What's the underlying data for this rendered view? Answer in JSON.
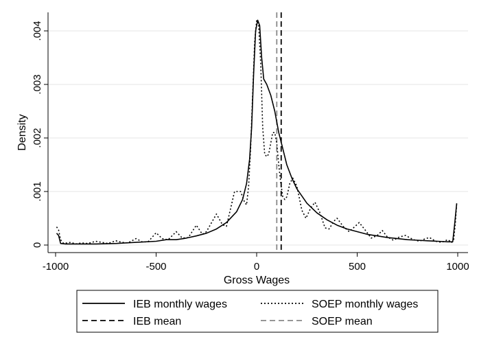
{
  "chart_data": {
    "type": "line",
    "title": "",
    "xlabel": "Gross Wages",
    "ylabel": "Density",
    "xlim": [
      -1000,
      1000
    ],
    "ylim": [
      0,
      0.0043
    ],
    "grid": true,
    "legend_position": "bottom",
    "x_ticks": [
      {
        "value": -1000,
        "label": "-1000"
      },
      {
        "value": -500,
        "label": "-500"
      },
      {
        "value": 0,
        "label": "0"
      },
      {
        "value": 500,
        "label": "500"
      },
      {
        "value": 1000,
        "label": "1000"
      }
    ],
    "y_ticks": [
      {
        "value": 0,
        "label": "0"
      },
      {
        "value": 0.001,
        "label": ".001"
      },
      {
        "value": 0.002,
        "label": ".002"
      },
      {
        "value": 0.003,
        "label": ".003"
      },
      {
        "value": 0.004,
        "label": ".004"
      }
    ],
    "series": [
      {
        "name": "IEB monthly wages",
        "style": "solid",
        "color": "#000000",
        "points": [
          [
            -995,
            0.00022
          ],
          [
            -985,
            0.00018
          ],
          [
            -975,
            3e-05
          ],
          [
            -950,
            2e-05
          ],
          [
            -900,
            2e-05
          ],
          [
            -800,
            2e-05
          ],
          [
            -700,
            3e-05
          ],
          [
            -600,
            5e-05
          ],
          [
            -500,
            7e-05
          ],
          [
            -450,
            0.0001
          ],
          [
            -400,
            0.0001
          ],
          [
            -350,
            0.00013
          ],
          [
            -300,
            0.00017
          ],
          [
            -250,
            0.00022
          ],
          [
            -200,
            0.0003
          ],
          [
            -150,
            0.00042
          ],
          [
            -100,
            0.00062
          ],
          [
            -70,
            0.00085
          ],
          [
            -50,
            0.00115
          ],
          [
            -35,
            0.0016
          ],
          [
            -25,
            0.0022
          ],
          [
            -15,
            0.0032
          ],
          [
            -5,
            0.004
          ],
          [
            5,
            0.0042
          ],
          [
            15,
            0.0041
          ],
          [
            25,
            0.0035
          ],
          [
            35,
            0.0031
          ],
          [
            50,
            0.003
          ],
          [
            70,
            0.0028
          ],
          [
            90,
            0.0025
          ],
          [
            110,
            0.0021
          ],
          [
            130,
            0.0018
          ],
          [
            150,
            0.0015
          ],
          [
            175,
            0.00125
          ],
          [
            200,
            0.00105
          ],
          [
            250,
            0.00078
          ],
          [
            300,
            0.0006
          ],
          [
            350,
            0.00047
          ],
          [
            400,
            0.00037
          ],
          [
            450,
            0.0003
          ],
          [
            500,
            0.00025
          ],
          [
            550,
            0.0002
          ],
          [
            600,
            0.00017
          ],
          [
            650,
            0.00014
          ],
          [
            700,
            0.00012
          ],
          [
            750,
            0.0001
          ],
          [
            800,
            9e-05
          ],
          [
            850,
            8e-05
          ],
          [
            900,
            7e-05
          ],
          [
            950,
            6e-05
          ],
          [
            975,
            6e-05
          ],
          [
            985,
            0.0004
          ],
          [
            995,
            0.00078
          ]
        ]
      },
      {
        "name": "SOEP monthly wages",
        "style": "dotted",
        "color": "#000000",
        "points": [
          [
            -995,
            0.00034
          ],
          [
            -985,
            0.00028
          ],
          [
            -975,
            0.0001
          ],
          [
            -960,
            3e-05
          ],
          [
            -925,
            5e-05
          ],
          [
            -900,
            2e-05
          ],
          [
            -870,
            4e-05
          ],
          [
            -840,
            3e-05
          ],
          [
            -800,
            7e-05
          ],
          [
            -770,
            5e-05
          ],
          [
            -740,
            3e-05
          ],
          [
            -700,
            8e-05
          ],
          [
            -670,
            5e-05
          ],
          [
            -640,
            4e-05
          ],
          [
            -600,
            0.00012
          ],
          [
            -570,
            6e-05
          ],
          [
            -540,
            6e-05
          ],
          [
            -500,
            0.00023
          ],
          [
            -470,
            0.00012
          ],
          [
            -440,
            0.0001
          ],
          [
            -400,
            0.00025
          ],
          [
            -370,
            0.00013
          ],
          [
            -340,
            0.00014
          ],
          [
            -300,
            0.00037
          ],
          [
            -270,
            0.0002
          ],
          [
            -250,
            0.00025
          ],
          [
            -200,
            0.00058
          ],
          [
            -170,
            0.00038
          ],
          [
            -150,
            0.00035
          ],
          [
            -110,
            0.001
          ],
          [
            -80,
            0.001
          ],
          [
            -60,
            0.0008
          ],
          [
            -50,
            0.00075
          ],
          [
            -40,
            0.0011
          ],
          [
            -30,
            0.0018
          ],
          [
            -20,
            0.0028
          ],
          [
            -10,
            0.0038
          ],
          [
            0,
            0.0042
          ],
          [
            10,
            0.0041
          ],
          [
            20,
            0.0034
          ],
          [
            30,
            0.0022
          ],
          [
            40,
            0.0017
          ],
          [
            50,
            0.00165
          ],
          [
            60,
            0.0017
          ],
          [
            70,
            0.0019
          ],
          [
            80,
            0.0021
          ],
          [
            90,
            0.0021
          ],
          [
            100,
            0.0019
          ],
          [
            110,
            0.0015
          ],
          [
            120,
            0.00115
          ],
          [
            130,
            0.0009
          ],
          [
            140,
            0.00085
          ],
          [
            150,
            0.0009
          ],
          [
            165,
            0.00115
          ],
          [
            180,
            0.00125
          ],
          [
            200,
            0.0011
          ],
          [
            225,
            0.00065
          ],
          [
            245,
            0.0005
          ],
          [
            270,
            0.0007
          ],
          [
            290,
            0.0008
          ],
          [
            315,
            0.0006
          ],
          [
            340,
            0.00032
          ],
          [
            360,
            0.0003
          ],
          [
            385,
            0.00045
          ],
          [
            400,
            0.0005
          ],
          [
            430,
            0.00035
          ],
          [
            460,
            0.00025
          ],
          [
            490,
            0.00035
          ],
          [
            510,
            0.00042
          ],
          [
            540,
            0.00028
          ],
          [
            570,
            0.00013
          ],
          [
            600,
            0.00018
          ],
          [
            625,
            0.00027
          ],
          [
            650,
            0.00015
          ],
          [
            680,
            9e-05
          ],
          [
            710,
            0.00015
          ],
          [
            740,
            0.00018
          ],
          [
            780,
            0.0001
          ],
          [
            810,
            7e-05
          ],
          [
            840,
            0.00012
          ],
          [
            860,
            0.00014
          ],
          [
            890,
            7e-05
          ],
          [
            920,
            5e-05
          ],
          [
            950,
            0.0001
          ],
          [
            970,
            5e-05
          ],
          [
            980,
            0.0001
          ],
          [
            988,
            0.0004
          ],
          [
            995,
            0.00078
          ]
        ]
      }
    ],
    "reference_lines": [
      {
        "name": "IEB mean",
        "x": 122,
        "style": "dashed",
        "color": "#000000"
      },
      {
        "name": "SOEP mean",
        "x": 100,
        "style": "dashed",
        "color": "#888888"
      }
    ],
    "legend": [
      {
        "label": "IEB monthly wages",
        "style": "solid",
        "color": "#000000"
      },
      {
        "label": "SOEP monthly wages",
        "style": "dotted",
        "color": "#000000"
      },
      {
        "label": "IEB mean",
        "style": "dashed",
        "color": "#000000"
      },
      {
        "label": "SOEP mean",
        "style": "dashed",
        "color": "#888888"
      }
    ]
  }
}
